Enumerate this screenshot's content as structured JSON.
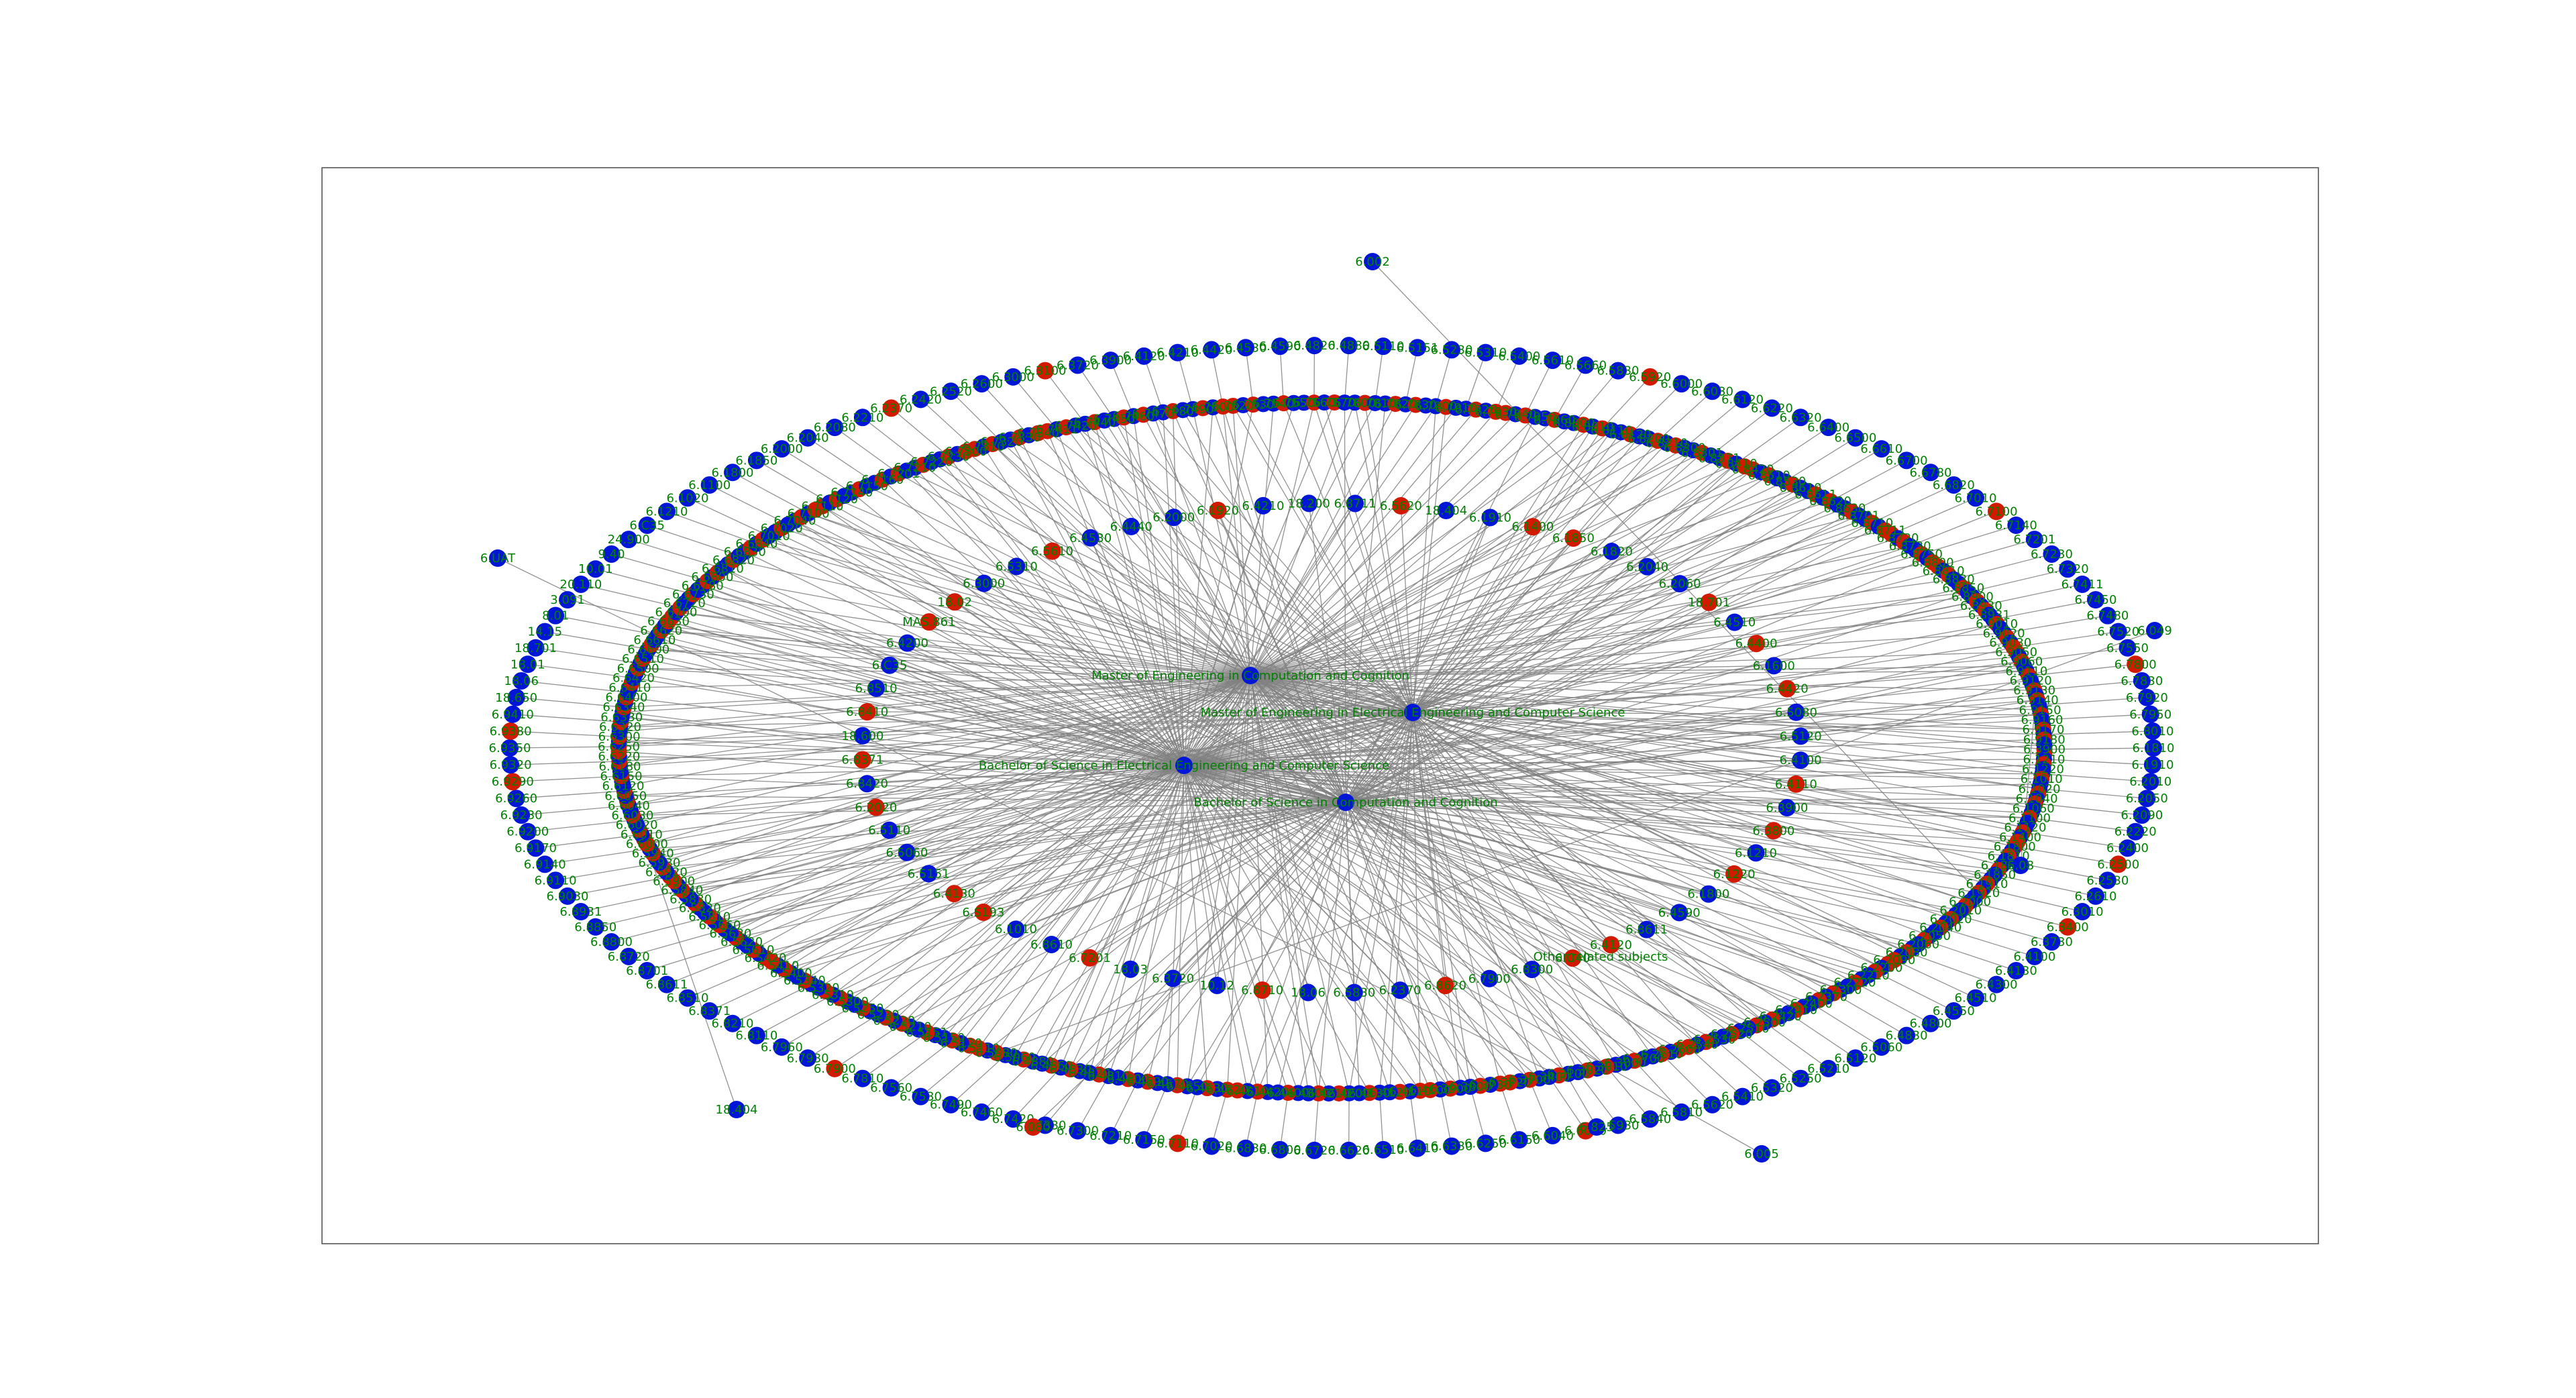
{
  "colors": {
    "subject_node": "#0016d6",
    "prerequisite_node": "#d21a00",
    "edge": "#808080",
    "label": "#008000",
    "frame": "#555555"
  },
  "hubs": [
    {
      "id": "meng-cs",
      "label": "Master of Engineering in Computation and Cognition"
    },
    {
      "id": "meng-eecs",
      "label": "Master of Engineering in Electrical Engineering and Computer Science"
    },
    {
      "id": "bs-eecs",
      "label": "Bachelor of Science in Electrical Engineering and Computer Science"
    },
    {
      "id": "bs-cs",
      "label": "Bachelor of Science in Computation and Cognition"
    }
  ],
  "group_labels": [
    {
      "id": "other-related",
      "label": "Other related subjects"
    }
  ],
  "outer_nodes": [
    {
      "label": "6.002",
      "color": "blue"
    },
    {
      "label": "6.UAT",
      "color": "blue"
    },
    {
      "label": "6.049",
      "color": "blue"
    },
    {
      "label": "18.404",
      "color": "blue"
    },
    {
      "label": "6.005",
      "color": "blue"
    },
    {
      "label": "6.825",
      "color": "blue"
    },
    {
      "label": "6.080",
      "color": "red"
    },
    {
      "label": "6.08",
      "color": "blue"
    }
  ],
  "ring_labels": [
    "6.3900",
    "6.1210",
    "6.1220",
    "6.1010",
    "6.1020",
    "6.1040",
    "6.1060",
    "6.1100",
    "6.1120",
    "6.1400",
    "6.1800",
    "6.1810",
    "6.1820",
    "6.1850",
    "6.1910",
    "6.1920",
    "6.2000",
    "6.2010",
    "6.2020",
    "6.2040",
    "6.2050",
    "6.2060",
    "6.2080",
    "6.2090",
    "6.2200",
    "6.2210",
    "6.2220",
    "6.2300",
    "6.2370",
    "6.2400",
    "6.2410",
    "6.2420",
    "6.2500",
    "6.2510",
    "6.2520",
    "6.2530",
    "6.2540",
    "6.2600",
    "6.2610",
    "6.2700",
    "6.3000",
    "6.3010",
    "6.3020",
    "6.3100",
    "6.3400",
    "6.3700",
    "6.3720",
    "6.3730",
    "6.3800",
    "6.3900",
    "6.4100",
    "6.4110",
    "6.4120",
    "6.4130",
    "6.4200",
    "6.4210",
    "6.4300",
    "6.4400",
    "6.4420",
    "6.4510",
    "6.4520",
    "6.4530",
    "6.4550",
    "6.4570",
    "6.4590",
    "6.4800",
    "6.4810",
    "6.4820",
    "6.4830",
    "6.4860",
    "6.4880",
    "6.5060",
    "6.5080",
    "6.5110",
    "6.5120",
    "6.5150",
    "6.5151",
    "6.5210",
    "6.5220",
    "6.5230",
    "6.5250",
    "6.5300",
    "6.5310",
    "6.5320",
    "6.5340",
    "6.5400",
    "6.5410",
    "6.5420",
    "6.5610",
    "6.5620",
    "6.5630",
    "6.5660",
    "6.5810",
    "6.5820",
    "6.5830",
    "6.5840",
    "6.5900",
    "6.5920",
    "6.5930",
    "6.5940",
    "6.6000",
    "6.6010",
    "6.6020",
    "6.6030",
    "6.6040",
    "6.6050",
    "6.6120",
    "6.6150",
    "6.6180",
    "6.6220",
    "6.6250",
    "6.6300",
    "6.6320",
    "6.6330",
    "6.6340",
    "6.6400",
    "6.6410",
    "6.6420",
    "6.6500",
    "6.6510",
    "6.6600",
    "6.6610",
    "6.6620",
    "6.6630",
    "6.6700",
    "6.6720",
    "6.6730",
    "6.6780",
    "6.6800",
    "6.6810",
    "6.6820",
    "6.6830",
    "6.6840",
    "6.7010",
    "6.7020",
    "6.7040",
    "6.7100",
    "6.7110",
    "6.7120",
    "6.7140",
    "6.7150",
    "6.7160",
    "6.7201",
    "6.7210",
    "6.7220",
    "6.7230",
    "6.7300",
    "6.7310",
    "6.7320",
    "6.7330",
    "6.7340",
    "6.7411",
    "6.7420",
    "6.7440",
    "6.7450",
    "6.7460",
    "6.7470",
    "6.7480",
    "6.7490",
    "6.7500",
    "6.7520",
    "6.7530",
    "6.7540",
    "6.7550",
    "6.7560",
    "6.7570",
    "6.7800",
    "6.7810",
    "6.7820",
    "6.7830",
    "6.7900",
    "6.7910",
    "6.7920",
    "6.7930",
    "6.7940",
    "6.7950",
    "6.7960",
    "6.8000",
    "6.8010",
    "6.8110",
    "6.8120",
    "6.8200",
    "6.8210",
    "6.8300",
    "6.8301",
    "6.8371",
    "6.8410",
    "6.8420",
    "6.8510",
    "6.8530",
    "6.8610",
    "6.8611",
    "6.8620",
    "6.8630",
    "6.8701",
    "6.8710",
    "6.8711",
    "6.8720",
    "6.8730",
    "6.8750",
    "6.8800",
    "6.8810",
    "6.8830",
    "6.8850",
    "6.8900",
    "6.8930",
    "6.8931",
    "6.9010",
    "6.9020",
    "6.9030",
    "6.9050",
    "6.9060",
    "6.9110",
    "6.9120",
    "6.9130",
    "6.9140",
    "6.9150",
    "6.9160",
    "6.9170",
    "6.9180",
    "6.9190",
    "6.9200",
    "6.9210",
    "6.9220",
    "6.9230",
    "6.9240",
    "6.9250",
    "6.9260",
    "6.9270",
    "6.9280",
    "6.9290",
    "6.9300",
    "6.9310",
    "6.9320",
    "6.9330",
    "6.9340",
    "6.9350",
    "6.9360",
    "6.9370",
    "6.9380",
    "6.9390",
    "6.9400",
    "6.9410",
    "6.9420",
    "18.600",
    "18.650",
    "18.404",
    "18.200",
    "18.06",
    "18.03",
    "18.02",
    "18.01",
    "18.102",
    "18.700",
    "18.701",
    "18.702",
    "14.01",
    "14.15",
    "14.16",
    "8.02",
    "8.01",
    "7.01",
    "5.111",
    "3.091",
    "2.001",
    "2.009",
    "20.110",
    "20.020",
    "16.001",
    "10.01",
    "6.C01",
    "6.S193",
    "9.40",
    "9.60",
    "MAS.861",
    "24.900",
    "15.053",
    "6.C40",
    "6.C35",
    "CMS.611"
  ],
  "inner_labels": [
    "6.4100",
    "6.4110",
    "6.3900",
    "6.3800",
    "6.1210",
    "6.1220",
    "6.1800",
    "6.4590",
    "6.8611",
    "6.4120",
    "6.C40",
    "6.8300",
    "6.7900",
    "6.8620",
    "6.2370",
    "6.5830",
    "18.06",
    "6.8710",
    "10.12",
    "6.3720",
    "18.03",
    "6.7201",
    "6.8610",
    "6.1010",
    "6.S193",
    "6.4130",
    "6.5151",
    "6.5060",
    "6.5110",
    "6.2020",
    "6.8420",
    "6.8371",
    "18.600",
    "6.8410",
    "6.8510",
    "6.C35",
    "6.4200",
    "MAS.861",
    "18.02",
    "6.3000",
    "6.5310",
    "6.5610",
    "6.4530",
    "6.4440",
    "6.2000",
    "6.1920",
    "6.4210",
    "18.200",
    "6.8711",
    "6.5620",
    "18.404",
    "6.1910",
    "6.1400",
    "6.1850",
    "6.1820",
    "6.2040",
    "6.2060",
    "18.701",
    "6.4510",
    "6.4400",
    "6.1600",
    "6.4420",
    "6.5080",
    "6.5120"
  ]
}
